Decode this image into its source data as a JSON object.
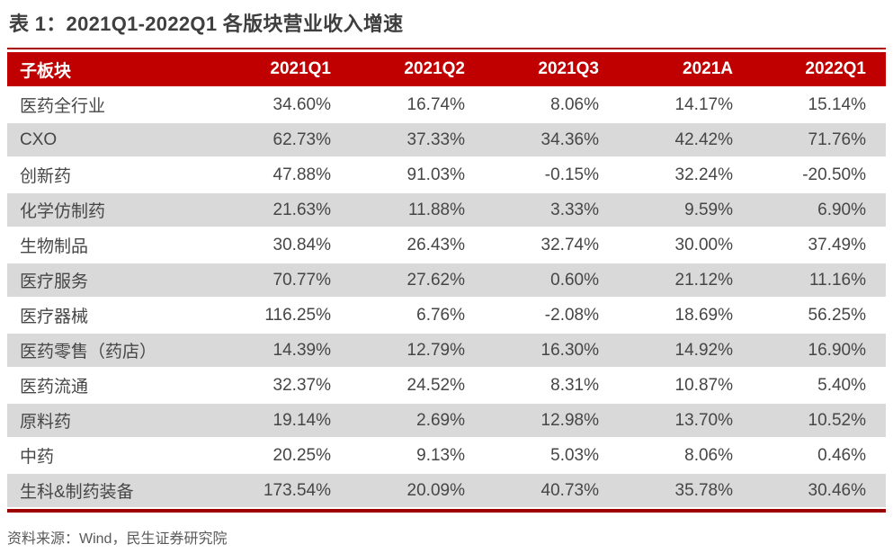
{
  "page": {
    "title": "表 1：2021Q1-2022Q1 各版块营业收入增速",
    "source_note": "资料来源：Wind，民生证券研究院"
  },
  "colors": {
    "header_bg": "#C00000",
    "top_rule": "#AB0000",
    "bottom_rule": "#9C0000",
    "row_stripe_bg": "#D9D9D9",
    "header_text": "#FFFFFF",
    "body_text": "#464646"
  },
  "table": {
    "columns": [
      "子板块",
      "2021Q1",
      "2021Q2",
      "2021Q3",
      "2021A",
      "2022Q1"
    ],
    "rows": [
      {
        "label": "医药全行业",
        "values": [
          "34.60%",
          "16.74%",
          "8.06%",
          "14.17%",
          "15.14%"
        ]
      },
      {
        "label": "CXO",
        "values": [
          "62.73%",
          "37.33%",
          "34.36%",
          "42.42%",
          "71.76%"
        ]
      },
      {
        "label": "创新药",
        "values": [
          "47.88%",
          "91.03%",
          "-0.15%",
          "32.24%",
          "-20.50%"
        ]
      },
      {
        "label": "化学仿制药",
        "values": [
          "21.63%",
          "11.88%",
          "3.33%",
          "9.59%",
          "6.90%"
        ]
      },
      {
        "label": "生物制品",
        "values": [
          "30.84%",
          "26.43%",
          "32.74%",
          "30.00%",
          "37.49%"
        ]
      },
      {
        "label": "医疗服务",
        "values": [
          "70.77%",
          "27.62%",
          "0.60%",
          "21.12%",
          "11.16%"
        ]
      },
      {
        "label": "医疗器械",
        "values": [
          "116.25%",
          "6.76%",
          "-2.08%",
          "18.69%",
          "56.25%"
        ]
      },
      {
        "label": "医药零售（药店）",
        "values": [
          "14.39%",
          "12.79%",
          "16.30%",
          "14.92%",
          "16.90%"
        ]
      },
      {
        "label": "医药流通",
        "values": [
          "32.37%",
          "24.52%",
          "8.31%",
          "10.87%",
          "5.40%"
        ]
      },
      {
        "label": "原料药",
        "values": [
          "19.14%",
          "2.69%",
          "12.98%",
          "13.70%",
          "10.52%"
        ]
      },
      {
        "label": "中药",
        "values": [
          "20.25%",
          "9.13%",
          "5.03%",
          "8.06%",
          "0.46%"
        ]
      },
      {
        "label": "生科&制药装备",
        "values": [
          "173.54%",
          "20.09%",
          "40.73%",
          "35.78%",
          "30.46%"
        ]
      }
    ]
  }
}
